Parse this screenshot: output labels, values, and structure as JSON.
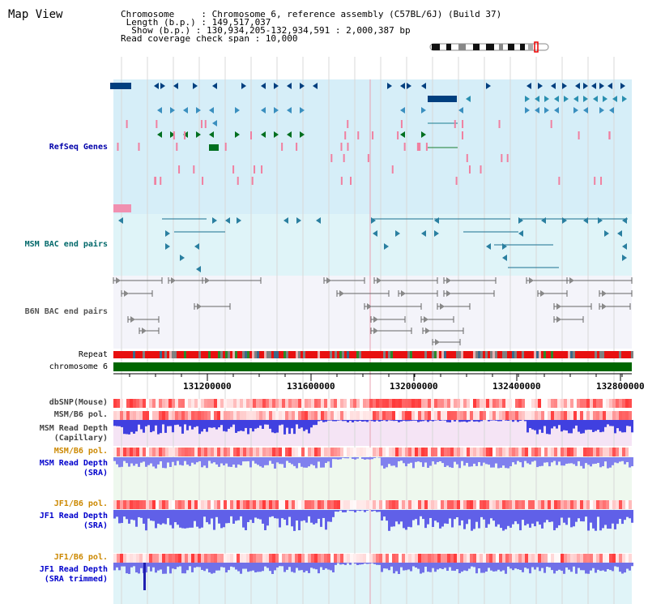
{
  "header": {
    "title": "Map View",
    "info_lines": [
      "Chromosome     : Chromosome 6, reference assembly (C57BL/6J) (Build 37)",
      " Length (b.p.) : 149,517,037",
      "  Show (b.p.) : 130,934,205-132,934,591 : 2,000,387 bp",
      "Read coverage check span : 10,000"
    ]
  },
  "tracks": {
    "refseq": "RefSeq Genes",
    "msm_bac": "MSM BAC end pairs",
    "b6n_bac": "B6N BAC end pairs",
    "repeat": "Repeat",
    "chromosome": "chromosome 6",
    "dbsnp": "dbSNP(Mouse)",
    "msm_b6_pol_1": "MSM/B6 pol.",
    "msm_depth_cap_1": "MSM Read Depth",
    "msm_depth_cap_2": "(Capillary)",
    "msm_b6_pol_2": "MSM/B6 pol.",
    "msm_depth_sra_1": "MSM Read Depth",
    "msm_depth_sra_2": "(SRA)",
    "jf1_b6_pol_1": "JF1/B6 pol.",
    "jf1_depth_sra_1": "JF1 Read Depth",
    "jf1_depth_sra_2": "(SRA)",
    "jf1_b6_pol_2": "JF1/B6 pol.",
    "jf1_depth_trim_1": "JF1 Read Depth",
    "jf1_depth_trim_2": "(SRA trimmed)"
  },
  "axis": {
    "start_bp": 130934205,
    "end_bp": 132934591,
    "ticks": [
      "131200000",
      "131600000",
      "132000000",
      "132400000",
      "132800000"
    ]
  },
  "colors": {
    "refseq_bg": "#d6eef8",
    "msm_bg": "#dff4f8",
    "b6n_bg": "#f4f4fa",
    "chromosome": "#006600",
    "depth_blue": "#3333dd",
    "pol_red": "#ee3333"
  }
}
